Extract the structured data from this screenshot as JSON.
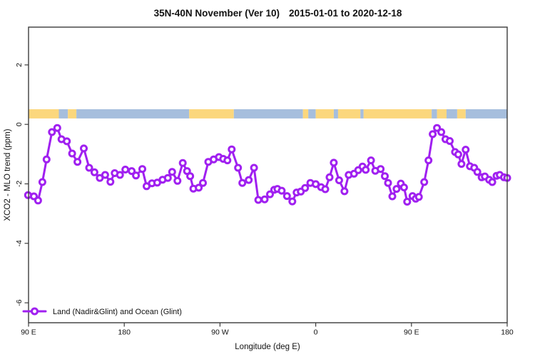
{
  "title": {
    "main": "35N-40N November (Ver 10)",
    "dates": "2015-01-01 to 2020-12-18"
  },
  "chart_data": {
    "type": "line",
    "title": "35N-40N November (Ver 10)   2015-01-01 to 2020-12-18",
    "xlabel": "Longitude (deg E)",
    "ylabel": "XCO2 - MLO trend (ppm)",
    "xlim": [
      90,
      540
    ],
    "ylim": [
      -6.67,
      3.27
    ],
    "grid": false,
    "x_ticks": [
      {
        "lon": 90,
        "label": "90 E"
      },
      {
        "lon": 180,
        "label": "180"
      },
      {
        "lon": 270,
        "label": "90 W"
      },
      {
        "lon": 360,
        "label": "0"
      },
      {
        "lon": 450,
        "label": "90 E"
      },
      {
        "lon": 540,
        "label": "180"
      }
    ],
    "y_ticks": [
      {
        "value": 2,
        "label": "2"
      },
      {
        "value": 0,
        "label": "0"
      },
      {
        "value": -2,
        "label": "-2"
      },
      {
        "value": -4,
        "label": "-4"
      },
      {
        "value": -6,
        "label": "-6"
      }
    ],
    "legend": {
      "label": "Land (Nadir&Glint) and Ocean (Glint)",
      "position": "bottom-left"
    },
    "colors": {
      "series": "#a020f0",
      "land_band": "#fbd77d",
      "ocean_band": "#a6bedd",
      "axis": "#3c3c3c"
    },
    "coverage_band": {
      "ppm_range": [
        0.2,
        0.51
      ],
      "segments": [
        {
          "from": 90,
          "to": 118.5,
          "surface": "land"
        },
        {
          "from": 118.5,
          "to": 127,
          "surface": "ocean"
        },
        {
          "from": 127,
          "to": 135,
          "surface": "land"
        },
        {
          "from": 135,
          "to": 241,
          "surface": "ocean"
        },
        {
          "from": 241,
          "to": 283,
          "surface": "land"
        },
        {
          "from": 283,
          "to": 348,
          "surface": "ocean"
        },
        {
          "from": 348,
          "to": 353,
          "surface": "land"
        },
        {
          "from": 353,
          "to": 360,
          "surface": "ocean"
        },
        {
          "from": 360,
          "to": 377,
          "surface": "land"
        },
        {
          "from": 377,
          "to": 381,
          "surface": "ocean"
        },
        {
          "from": 381,
          "to": 402,
          "surface": "land"
        },
        {
          "from": 402,
          "to": 405,
          "surface": "ocean"
        },
        {
          "from": 405,
          "to": 469,
          "surface": "land"
        },
        {
          "from": 469,
          "to": 474,
          "surface": "ocean"
        },
        {
          "from": 474,
          "to": 483,
          "surface": "land"
        },
        {
          "from": 483,
          "to": 493,
          "surface": "ocean"
        },
        {
          "from": 493,
          "to": 501,
          "surface": "land"
        },
        {
          "from": 501,
          "to": 540,
          "surface": "ocean"
        }
      ]
    },
    "series": [
      {
        "name": "Land (Nadir&Glint) and Ocean (Glint)",
        "marker": "open-circle",
        "points": [
          [
            89.5,
            -2.38
          ],
          [
            95,
            -2.42
          ],
          [
            99,
            -2.56
          ],
          [
            103,
            -1.94
          ],
          [
            107,
            -1.18
          ],
          [
            112,
            -0.26
          ],
          [
            117,
            -0.12
          ],
          [
            121,
            -0.5
          ],
          [
            126,
            -0.57
          ],
          [
            131,
            -0.98
          ],
          [
            136,
            -1.26
          ],
          [
            142,
            -0.81
          ],
          [
            147,
            -1.46
          ],
          [
            152,
            -1.61
          ],
          [
            157,
            -1.8
          ],
          [
            162,
            -1.7
          ],
          [
            167,
            -1.93
          ],
          [
            171,
            -1.64
          ],
          [
            176,
            -1.7
          ],
          [
            181,
            -1.52
          ],
          [
            187,
            -1.57
          ],
          [
            191,
            -1.72
          ],
          [
            197,
            -1.5
          ],
          [
            201,
            -2.08
          ],
          [
            206,
            -1.98
          ],
          [
            211,
            -1.96
          ],
          [
            216,
            -1.86
          ],
          [
            221,
            -1.8
          ],
          [
            225,
            -1.6
          ],
          [
            230,
            -1.9
          ],
          [
            235,
            -1.3
          ],
          [
            239,
            -1.57
          ],
          [
            242,
            -1.74
          ],
          [
            245,
            -2.16
          ],
          [
            250,
            -2.13
          ],
          [
            254,
            -1.97
          ],
          [
            259,
            -1.26
          ],
          [
            264,
            -1.18
          ],
          [
            269,
            -1.1
          ],
          [
            273,
            -1.16
          ],
          [
            277,
            -1.21
          ],
          [
            281,
            -0.84
          ],
          [
            287,
            -1.46
          ],
          [
            291,
            -1.97
          ],
          [
            297,
            -1.87
          ],
          [
            302,
            -1.46
          ],
          [
            306,
            -2.54
          ],
          [
            312,
            -2.52
          ],
          [
            317,
            -2.35
          ],
          [
            321,
            -2.2
          ],
          [
            324,
            -2.17
          ],
          [
            328,
            -2.23
          ],
          [
            333,
            -2.41
          ],
          [
            338,
            -2.59
          ],
          [
            342,
            -2.29
          ],
          [
            346,
            -2.26
          ],
          [
            350,
            -2.14
          ],
          [
            355,
            -1.97
          ],
          [
            360,
            -2.01
          ],
          [
            365,
            -2.11
          ],
          [
            369,
            -2.18
          ],
          [
            373,
            -1.78
          ],
          [
            377,
            -1.29
          ],
          [
            382,
            -1.88
          ],
          [
            387,
            -2.25
          ],
          [
            391,
            -1.7
          ],
          [
            396,
            -1.66
          ],
          [
            400,
            -1.54
          ],
          [
            404,
            -1.42
          ],
          [
            407,
            -1.53
          ],
          [
            412,
            -1.21
          ],
          [
            416,
            -1.56
          ],
          [
            421,
            -1.5
          ],
          [
            425,
            -1.74
          ],
          [
            428,
            -1.97
          ],
          [
            432,
            -2.42
          ],
          [
            436,
            -2.17
          ],
          [
            440,
            -1.99
          ],
          [
            443,
            -2.12
          ],
          [
            446,
            -2.6
          ],
          [
            451,
            -2.41
          ],
          [
            454,
            -2.5
          ],
          [
            457,
            -2.44
          ],
          [
            462,
            -1.94
          ],
          [
            466,
            -1.21
          ],
          [
            470,
            -0.33
          ],
          [
            474,
            -0.12
          ],
          [
            478,
            -0.26
          ],
          [
            482,
            -0.5
          ],
          [
            486,
            -0.56
          ],
          [
            491,
            -0.93
          ],
          [
            494,
            -1.01
          ],
          [
            497,
            -1.33
          ],
          [
            501,
            -0.85
          ],
          [
            505,
            -1.41
          ],
          [
            509,
            -1.46
          ],
          [
            512,
            -1.6
          ],
          [
            516,
            -1.78
          ],
          [
            519,
            -1.75
          ],
          [
            523,
            -1.86
          ],
          [
            526,
            -1.94
          ],
          [
            530,
            -1.73
          ],
          [
            533,
            -1.7
          ],
          [
            537,
            -1.78
          ],
          [
            540,
            -1.8
          ]
        ]
      }
    ]
  }
}
